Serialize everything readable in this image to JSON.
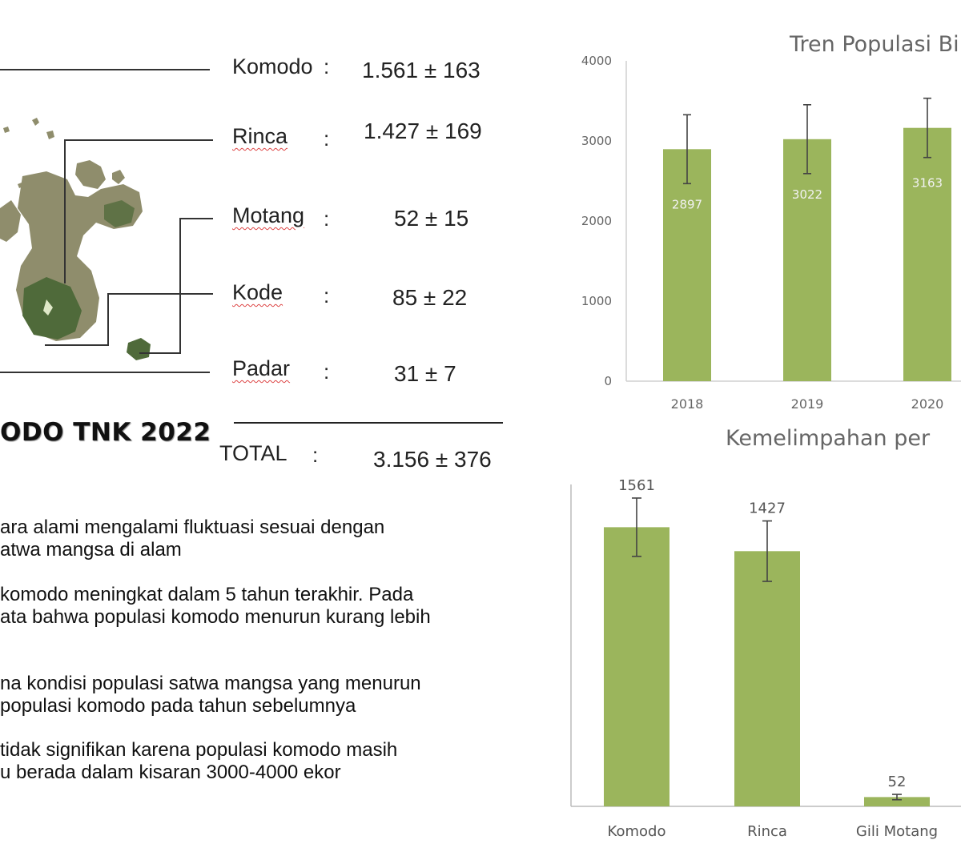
{
  "colors": {
    "bar": "#9bb55c",
    "error_bar": "#444444",
    "map_land": "#8f8d6c",
    "map_forest": "#4f6a3a"
  },
  "map": {
    "icons": [
      "island-map-icon"
    ],
    "footer_title": "ODO TNK 2022"
  },
  "islands": [
    {
      "name": "Komodo",
      "colon": ":",
      "value": "1.561 ± 163"
    },
    {
      "name": "Rinca",
      "colon": ":",
      "value": "1.427 ± 169"
    },
    {
      "name": "Motang",
      "colon": ":",
      "value": "52 ± 15"
    },
    {
      "name": "Kode",
      "colon": ":",
      "value": "85 ± 22"
    },
    {
      "name": "Padar",
      "colon": ":",
      "value": "31 ± 7"
    }
  ],
  "total": {
    "label": "TOTAL",
    "colon": ":",
    "value": "3.156 ± 376"
  },
  "bullets": [
    {
      "l1": "ara alami mengalami fluktuasi sesuai dengan",
      "l2": "atwa mangsa di alam"
    },
    {
      "l1": "komodo meningkat dalam 5 tahun terakhir. Pada",
      "l2": "ata bahwa populasi komodo menurun kurang lebih"
    },
    {
      "l1": "na kondisi populasi satwa mangsa yang menurun",
      "l2": "populasi komodo pada tahun sebelumnya"
    },
    {
      "l1": "tidak signifikan karena populasi komodo masih",
      "l2": "u berada dalam kisaran 3000-4000 ekor"
    }
  ],
  "chart_data": [
    {
      "type": "bar",
      "title": "Tren Populasi Bi",
      "categories": [
        "2018",
        "2019",
        "2020"
      ],
      "values": [
        2897,
        3022,
        3163
      ],
      "value_labels": [
        "2897",
        "3022",
        "3163"
      ],
      "error": [
        430,
        430,
        370
      ],
      "yticks": [
        "0",
        "1000",
        "2000",
        "3000",
        "4000"
      ],
      "ylim": [
        0,
        4000
      ],
      "grid": false
    },
    {
      "type": "bar",
      "title": "Kemelimpahan per",
      "categories": [
        "Komodo",
        "Rinca",
        "Gili Motang"
      ],
      "values": [
        1561,
        1427,
        52
      ],
      "value_labels": [
        "1561",
        "1427",
        "52"
      ],
      "error": [
        163,
        169,
        15
      ],
      "ylim": [
        0,
        1800
      ],
      "grid": false
    }
  ]
}
